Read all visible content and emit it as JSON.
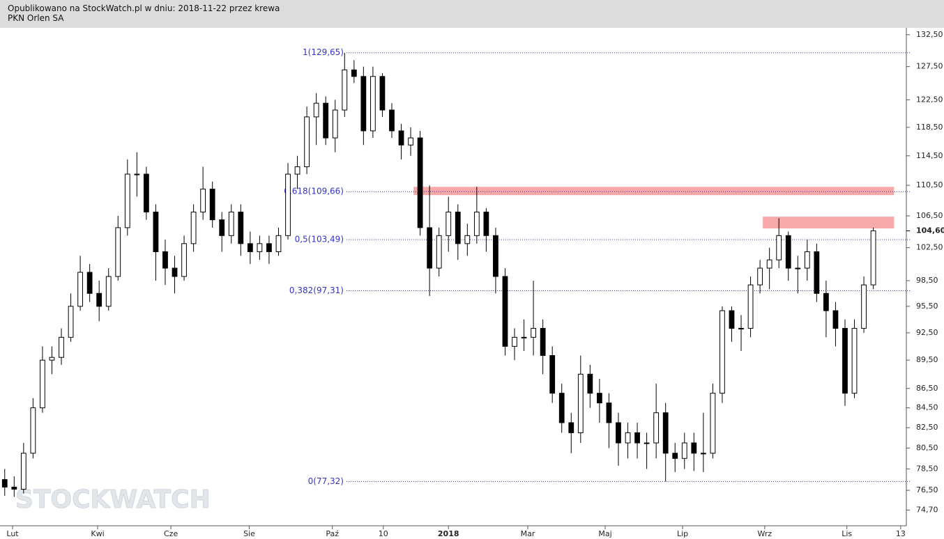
{
  "chart_data": {
    "type": "candlestick",
    "header": "Opublikowano na StockWatch.pl w dniu: 2018-11-22 przez krewa",
    "title": "PKN Orlen SA",
    "watermark": "STOCKWATCH",
    "log_scale": true,
    "ylim": [
      73.3,
      133.6
    ],
    "xlim": [
      -0.5,
      95.5
    ],
    "yticks": [
      {
        "value": 74.7,
        "label": "74,70"
      },
      {
        "value": 76.5,
        "label": "76,50"
      },
      {
        "value": 78.5,
        "label": "78,50"
      },
      {
        "value": 80.5,
        "label": "80,50"
      },
      {
        "value": 82.5,
        "label": "82,50"
      },
      {
        "value": 84.5,
        "label": "84,50"
      },
      {
        "value": 86.5,
        "label": "86,50"
      },
      {
        "value": 89.5,
        "label": "89,50"
      },
      {
        "value": 92.5,
        "label": "92,50"
      },
      {
        "value": 95.5,
        "label": "95,50"
      },
      {
        "value": 98.5,
        "label": "98,50"
      },
      {
        "value": 102.5,
        "label": "102,50"
      },
      {
        "value": 106.5,
        "label": "106,50"
      },
      {
        "value": 110.5,
        "label": "110,50"
      },
      {
        "value": 114.5,
        "label": "114,50"
      },
      {
        "value": 118.5,
        "label": "118,50"
      },
      {
        "value": 122.5,
        "label": "122,50"
      },
      {
        "value": 127.5,
        "label": "127,50"
      },
      {
        "value": 132.5,
        "label": "132,50"
      }
    ],
    "last_price": {
      "value": 104.6,
      "label": "104,60"
    },
    "xticks": [
      {
        "value": 0.83,
        "label": "Lut"
      },
      {
        "value": 9.84,
        "label": "Kwi"
      },
      {
        "value": 17.6,
        "label": "Cze"
      },
      {
        "value": 25.9,
        "label": "Sie"
      },
      {
        "value": 34.7,
        "label": "Paź"
      },
      {
        "value": 40.1,
        "label": "10"
      },
      {
        "value": 47.0,
        "label": "2018"
      },
      {
        "value": 55.4,
        "label": "Mar"
      },
      {
        "value": 63.6,
        "label": "Maj"
      },
      {
        "value": 71.8,
        "label": "Lip"
      },
      {
        "value": 80.5,
        "label": "Wrz"
      },
      {
        "value": 89.2,
        "label": "Lis"
      },
      {
        "value": 94.9,
        "label": "13"
      }
    ],
    "fib_levels": [
      {
        "value": 129.65,
        "label": "1(129,65)"
      },
      {
        "value": 109.66,
        "label": "0,618(109,66)"
      },
      {
        "value": 103.49,
        "label": "0,5(103,49)"
      },
      {
        "value": 97.31,
        "label": "0,382(97,31)"
      },
      {
        "value": 77.32,
        "label": "0(77,32)"
      }
    ],
    "zones": [
      {
        "y0": 109.2,
        "y1": 110.3,
        "x0": 43.3,
        "x1": 94.2,
        "color": "#f7a8a8"
      },
      {
        "y0": 104.9,
        "y1": 106.4,
        "x0": 80.3,
        "x1": 94.2,
        "color": "#f7a8a8"
      }
    ],
    "x": [
      0,
      1,
      2,
      3,
      4,
      5,
      6,
      7,
      8,
      9,
      10,
      11,
      12,
      13,
      14,
      15,
      16,
      17,
      18,
      19,
      20,
      21,
      22,
      23,
      24,
      25,
      26,
      27,
      28,
      29,
      30,
      31,
      32,
      33,
      34,
      35,
      36,
      37,
      38,
      39,
      40,
      41,
      42,
      43,
      44,
      45,
      46,
      47,
      48,
      49,
      50,
      51,
      52,
      53,
      54,
      55,
      56,
      57,
      58,
      59,
      60,
      61,
      62,
      63,
      64,
      65,
      66,
      67,
      68,
      69,
      70,
      71,
      72,
      73,
      74,
      75,
      76,
      77,
      78,
      79,
      80,
      81,
      82,
      83,
      84,
      85,
      86,
      87,
      88,
      89,
      90,
      91,
      92
    ],
    "open": [
      77.5,
      76.8,
      76.6,
      80,
      84.5,
      89.5,
      89.8,
      92,
      95.5,
      99.5,
      97,
      95.5,
      99,
      105,
      112,
      112,
      107,
      102,
      100,
      99,
      103,
      107,
      110,
      106,
      104,
      107,
      103,
      102,
      103,
      102,
      104,
      112,
      113,
      120,
      122,
      117,
      121,
      127,
      126,
      118,
      126,
      121,
      118,
      116,
      117,
      105,
      100,
      104,
      107,
      103,
      104,
      107,
      104,
      99,
      91,
      92,
      92,
      93,
      90,
      86,
      83,
      82,
      88,
      86,
      85,
      83,
      81,
      82,
      81,
      81,
      84,
      80,
      79.5,
      81,
      80,
      80,
      86,
      95,
      93,
      93,
      98,
      100,
      101,
      104,
      100,
      100,
      102,
      97,
      95,
      93,
      86,
      93,
      98
    ],
    "high": [
      78.5,
      77.8,
      81,
      85.5,
      91,
      91,
      93,
      97,
      101.5,
      100.5,
      98.5,
      100,
      106.5,
      114,
      115,
      113,
      108,
      103.5,
      101.5,
      104,
      108,
      113,
      111,
      107,
      108,
      108,
      104.5,
      104,
      104,
      105,
      113.5,
      114.5,
      121.5,
      123.5,
      123,
      122.5,
      129.65,
      128.5,
      127.5,
      127.5,
      126.5,
      122,
      119,
      118.5,
      118,
      110.5,
      105,
      109,
      108,
      105.5,
      110.3,
      107.5,
      105,
      100,
      93,
      94,
      98.5,
      94,
      91,
      87,
      84,
      90,
      89,
      87.5,
      86,
      84,
      83,
      83,
      82,
      87,
      85,
      81,
      82,
      82,
      84,
      87,
      95.5,
      95.5,
      94.5,
      99,
      101,
      102.5,
      106.2,
      104.5,
      101.5,
      103.5,
      103,
      98.5,
      96,
      94,
      94,
      99,
      105
    ],
    "low": [
      76,
      75.9,
      76.2,
      79.5,
      84,
      88,
      89,
      91.5,
      95,
      96,
      93.8,
      95,
      98.5,
      104,
      109,
      106,
      98.5,
      98,
      97,
      98.5,
      102,
      106,
      105,
      102,
      103,
      101.5,
      100.5,
      101,
      100.5,
      101.5,
      103.5,
      110,
      112,
      116,
      116,
      115,
      120,
      125,
      116,
      117,
      120,
      117,
      114,
      114.5,
      104,
      96.7,
      99,
      102,
      101,
      101.5,
      103,
      102,
      97,
      90,
      89.5,
      90.5,
      90,
      88,
      85,
      82,
      80,
      81,
      84.5,
      83,
      80.5,
      78.8,
      79.5,
      79.5,
      78.5,
      79.5,
      77.32,
      78.2,
      78.5,
      78.3,
      78.2,
      79.5,
      85,
      91.5,
      90.5,
      92,
      97,
      97.5,
      100,
      98.5,
      97,
      98.5,
      96,
      92,
      91,
      84.7,
      85.5,
      92.5,
      97.5
    ],
    "close": [
      76.8,
      76.6,
      80,
      84.5,
      89.5,
      89.8,
      92,
      95.5,
      99.5,
      97,
      95.5,
      99,
      105,
      112,
      112,
      107,
      102,
      100,
      99,
      103,
      107,
      110,
      106,
      104,
      107,
      103,
      102,
      103,
      102,
      104,
      112,
      113,
      120,
      122,
      117,
      121,
      127,
      126,
      118,
      126,
      121,
      118,
      116,
      117,
      105,
      100,
      104,
      107,
      103,
      104,
      107,
      104,
      99,
      91,
      92,
      92,
      93,
      90,
      86,
      83,
      82,
      88,
      86,
      85,
      83,
      81,
      82,
      81,
      81,
      84,
      80,
      79.5,
      81,
      80,
      80,
      86,
      95,
      93,
      93,
      98,
      100,
      101,
      104,
      100,
      100,
      102,
      97,
      95,
      93,
      86,
      93,
      98,
      104.6
    ]
  }
}
